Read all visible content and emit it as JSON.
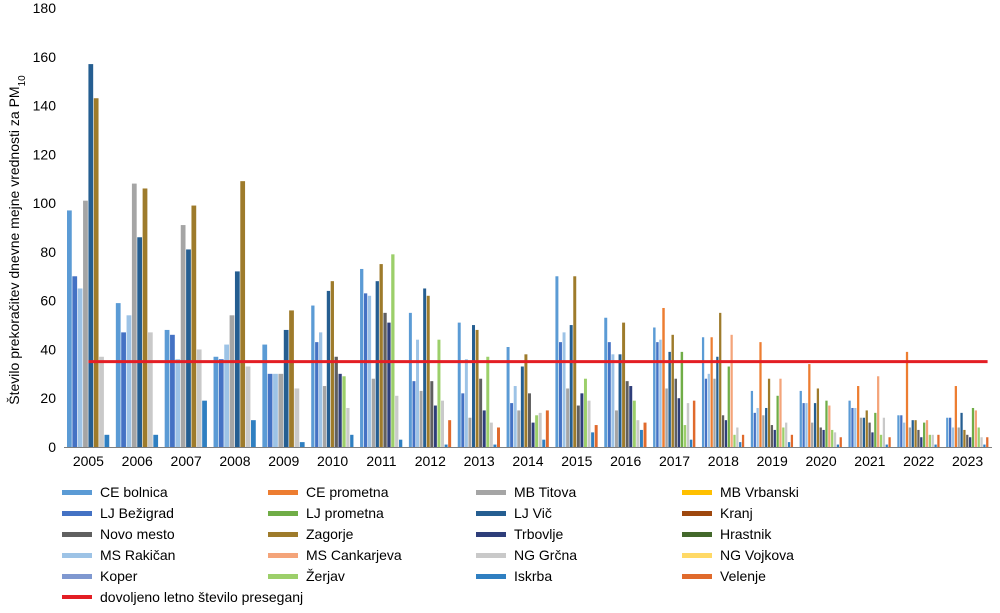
{
  "chart_data": {
    "type": "bar",
    "ylabel": "Število prekoračitev dnevne mejne vrednosti za PM",
    "ylabel_subscript": "10",
    "ylim": [
      0,
      180
    ],
    "yticks": [
      "0",
      "20",
      "40",
      "60",
      "80",
      "100",
      "120",
      "140",
      "160",
      "180"
    ],
    "grid": false,
    "categories": [
      "2005",
      "2006",
      "2007",
      "2008",
      "2009",
      "2010",
      "2011",
      "2012",
      "2013",
      "2014",
      "2015",
      "2016",
      "2017",
      "2018",
      "2019",
      "2020",
      "2021",
      "2022",
      "2023"
    ],
    "limit_line": {
      "name": "dovoljeno letno število preseganj",
      "value": 35,
      "color": "#e31e24"
    },
    "series": [
      {
        "name": "CE bolnica",
        "color": "#5b9bd5",
        "values": [
          97,
          59,
          48,
          37,
          42,
          58,
          73,
          55,
          51,
          41,
          70,
          53,
          49,
          45,
          23,
          23,
          19,
          13,
          12
        ]
      },
      {
        "name": "LJ Bežigrad",
        "color": "#4472c4",
        "values": [
          70,
          47,
          46,
          36,
          30,
          43,
          63,
          27,
          22,
          18,
          43,
          43,
          43,
          28,
          14,
          18,
          16,
          13,
          12
        ]
      },
      {
        "name": "Novo mesto",
        "color": "#606060",
        "values": [
          null,
          null,
          null,
          null,
          null,
          37,
          55,
          27,
          28,
          22,
          17,
          27,
          28,
          13,
          9,
          8,
          10,
          7,
          5
        ]
      },
      {
        "name": "MS Rakičan",
        "color": "#9dc3e6",
        "values": [
          65,
          54,
          36,
          42,
          30,
          47,
          62,
          44,
          36,
          25,
          47,
          38,
          44,
          30,
          16,
          18,
          16,
          10,
          8
        ]
      },
      {
        "name": "Koper",
        "color": "#7f98d0",
        "values": [
          null,
          null,
          null,
          null,
          null,
          null,
          null,
          null,
          null,
          null,
          null,
          null,
          null,
          null,
          null,
          null,
          null,
          null,
          null
        ]
      },
      {
        "name": "CE prometna",
        "color": "#ed7d31",
        "values": [
          null,
          null,
          null,
          null,
          null,
          null,
          null,
          null,
          null,
          null,
          null,
          null,
          57,
          45,
          43,
          34,
          25,
          39,
          25
        ]
      },
      {
        "name": "LJ prometna",
        "color": "#70ad47",
        "values": [
          null,
          null,
          null,
          null,
          null,
          null,
          null,
          null,
          null,
          null,
          null,
          null,
          39,
          33,
          21,
          19,
          14,
          10,
          16
        ]
      },
      {
        "name": "Zagorje",
        "color": "#9e7b2b",
        "values": [
          143,
          106,
          99,
          109,
          56,
          68,
          75,
          62,
          48,
          38,
          70,
          51,
          46,
          55,
          28,
          24,
          15,
          11,
          7
        ]
      },
      {
        "name": "MS Cankarjeva",
        "color": "#f4a47a",
        "values": [
          null,
          null,
          null,
          null,
          null,
          null,
          null,
          null,
          null,
          null,
          null,
          null,
          null,
          46,
          28,
          17,
          29,
          11,
          15
        ]
      },
      {
        "name": "Žerjav",
        "color": "#9ccf6a",
        "values": [
          null,
          null,
          null,
          null,
          null,
          29,
          79,
          44,
          37,
          13,
          28,
          19,
          9,
          5,
          8,
          7,
          5,
          5,
          8
        ]
      },
      {
        "name": "MB Titova",
        "color": "#a5a5a5",
        "values": [
          101,
          108,
          91,
          54,
          30,
          25,
          28,
          23,
          12,
          15,
          24,
          15,
          24,
          28,
          13,
          10,
          12,
          8,
          8
        ]
      },
      {
        "name": "LJ Vič",
        "color": "#255e91",
        "values": [
          157,
          86,
          81,
          72,
          48,
          64,
          68,
          65,
          50,
          33,
          50,
          38,
          39,
          37,
          16,
          18,
          12,
          11,
          14
        ]
      },
      {
        "name": "Trbovlje",
        "color": "#2e3e7a",
        "values": [
          null,
          null,
          null,
          null,
          null,
          30,
          51,
          17,
          15,
          10,
          22,
          25,
          20,
          11,
          7,
          7,
          6,
          4,
          4
        ]
      },
      {
        "name": "NG Grčna",
        "color": "#c9c9c9",
        "values": [
          37,
          47,
          40,
          33,
          24,
          16,
          21,
          19,
          10,
          14,
          19,
          11,
          18,
          8,
          10,
          6,
          12,
          5,
          4
        ]
      },
      {
        "name": "Iskrba",
        "color": "#2f7fc1",
        "values": [
          5,
          5,
          19,
          11,
          2,
          5,
          3,
          1,
          1,
          3,
          6,
          7,
          3,
          2,
          2,
          1,
          1,
          1,
          1
        ]
      },
      {
        "name": "MB Vrbanski",
        "color": "#ffc000",
        "values": [
          null,
          null,
          null,
          null,
          null,
          null,
          null,
          null,
          null,
          null,
          null,
          null,
          null,
          null,
          null,
          null,
          null,
          null,
          null
        ]
      },
      {
        "name": "Kranj",
        "color": "#9e480e",
        "values": [
          null,
          null,
          null,
          null,
          null,
          null,
          null,
          null,
          null,
          null,
          null,
          null,
          null,
          null,
          null,
          null,
          null,
          null,
          null
        ]
      },
      {
        "name": "Hrastnik",
        "color": "#43682b",
        "values": [
          null,
          null,
          null,
          null,
          null,
          null,
          null,
          null,
          null,
          null,
          null,
          null,
          null,
          null,
          null,
          null,
          null,
          null,
          null
        ]
      },
      {
        "name": "NG Vojkova",
        "color": "#ffd966",
        "values": [
          null,
          null,
          null,
          null,
          null,
          null,
          null,
          null,
          null,
          null,
          null,
          null,
          null,
          null,
          null,
          null,
          null,
          null,
          null
        ]
      },
      {
        "name": "Velenje",
        "color": "#e06a2c",
        "values": [
          null,
          null,
          null,
          null,
          null,
          null,
          null,
          11,
          8,
          15,
          9,
          10,
          19,
          5,
          5,
          4,
          4,
          5,
          4
        ]
      }
    ]
  },
  "legend": {
    "items": [
      {
        "label": "CE bolnica",
        "color": "#5b9bd5"
      },
      {
        "label": "CE prometna",
        "color": "#ed7d31"
      },
      {
        "label": "MB Titova",
        "color": "#a5a5a5"
      },
      {
        "label": "MB Vrbanski",
        "color": "#ffc000"
      },
      {
        "label": "LJ Bežigrad",
        "color": "#4472c4"
      },
      {
        "label": "LJ prometna",
        "color": "#70ad47"
      },
      {
        "label": "LJ Vič",
        "color": "#255e91"
      },
      {
        "label": "Kranj",
        "color": "#9e480e"
      },
      {
        "label": "Novo mesto",
        "color": "#606060"
      },
      {
        "label": "Zagorje",
        "color": "#9e7b2b"
      },
      {
        "label": "Trbovlje",
        "color": "#2e3e7a"
      },
      {
        "label": "Hrastnik",
        "color": "#43682b"
      },
      {
        "label": "MS Rakičan",
        "color": "#9dc3e6"
      },
      {
        "label": "MS Cankarjeva",
        "color": "#f4a47a"
      },
      {
        "label": "NG Grčna",
        "color": "#c9c9c9"
      },
      {
        "label": "NG Vojkova",
        "color": "#ffd966"
      },
      {
        "label": "Koper",
        "color": "#7f98d0"
      },
      {
        "label": "Žerjav",
        "color": "#9ccf6a"
      },
      {
        "label": "Iskrba",
        "color": "#2f7fc1"
      },
      {
        "label": "Velenje",
        "color": "#e06a2c"
      }
    ],
    "line_item": {
      "label": "dovoljeno letno število preseganj",
      "color": "#e31e24"
    }
  }
}
